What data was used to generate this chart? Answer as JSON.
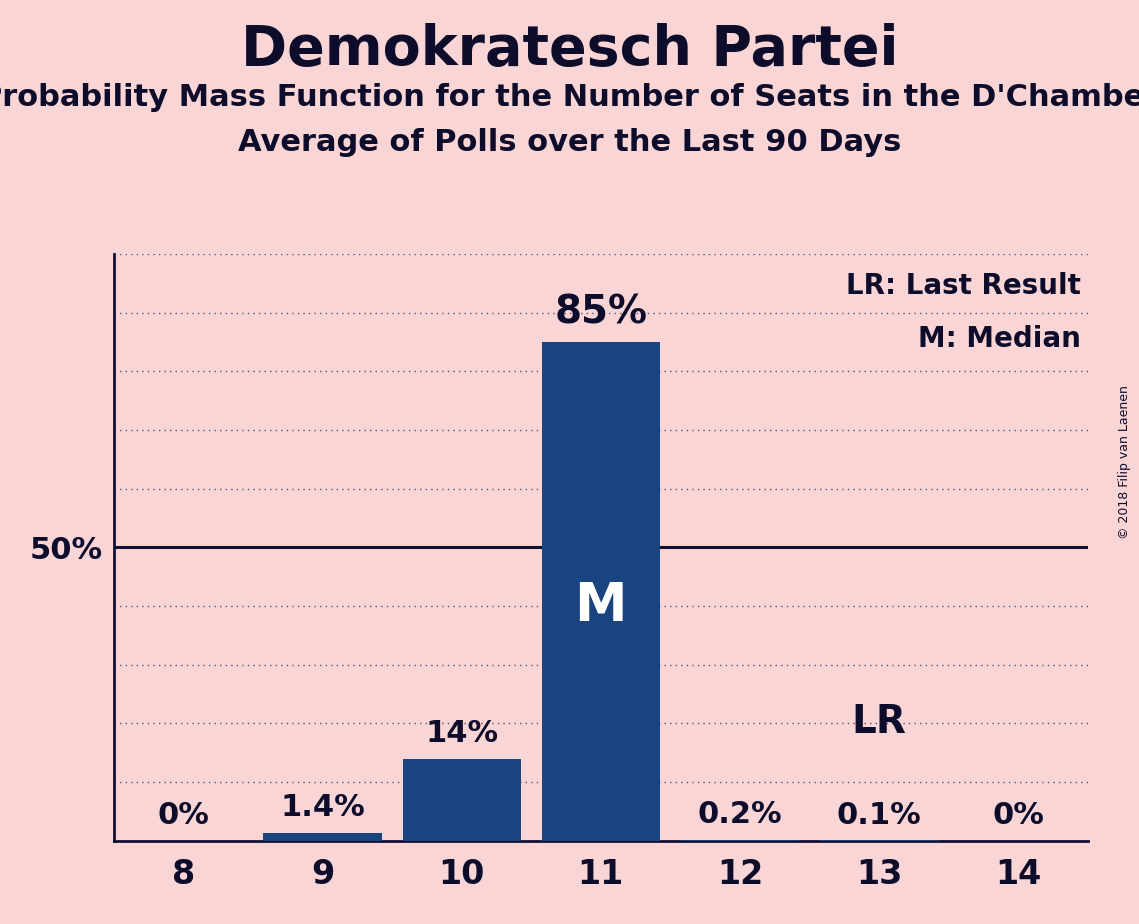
{
  "title": "Demokratesch Partei",
  "subtitle1": "Probability Mass Function for the Number of Seats in the D'Chamber",
  "subtitle2": "Average of Polls over the Last 90 Days",
  "copyright": "© 2018 Filip van Laenen",
  "categories": [
    8,
    9,
    10,
    11,
    12,
    13,
    14
  ],
  "values": [
    0.0,
    1.4,
    14.0,
    85.0,
    0.2,
    0.1,
    0.0
  ],
  "bar_color": "#1a4480",
  "background_color": "#fad5d5",
  "fifty_line_color": "#111133",
  "dotted_line_color": "#555577",
  "label_color": "#0d0d2b",
  "median_seat": 11,
  "lr_seat": 13,
  "ylim": [
    0,
    100
  ],
  "ytick_50_label": "50%",
  "bar_label_fontsize": 22,
  "axis_label_fontsize": 24,
  "title_fontsize": 40,
  "subtitle_fontsize": 22,
  "legend_fontsize": 20,
  "median_label_fontsize": 38,
  "lr_label_fontsize": 28,
  "copyright_fontsize": 9,
  "dotted_levels": [
    10,
    20,
    30,
    40,
    60,
    70,
    80,
    90,
    100
  ],
  "bar_width": 0.85
}
